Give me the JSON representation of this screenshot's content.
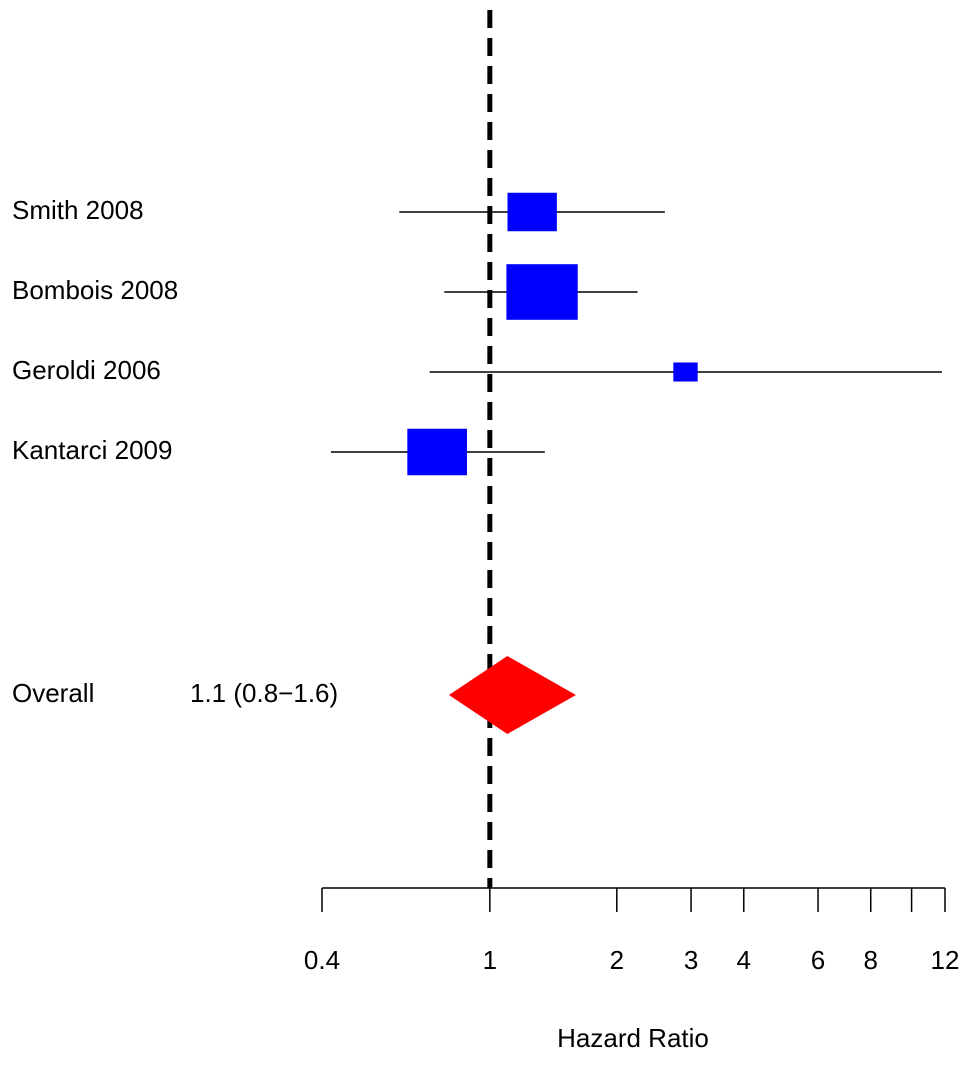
{
  "chart_data": {
    "type": "forest",
    "xlabel": "Hazard Ratio",
    "xscale": "log",
    "xlim": [
      0.4,
      12
    ],
    "xticks": [
      0.4,
      1,
      2,
      3,
      4,
      6,
      8,
      12
    ],
    "xminorticks": [
      10
    ],
    "reference_line": 1,
    "categories": [
      "Smith 2008",
      "Bombois 2008",
      "Geroldi 2006",
      "Kantarci 2009"
    ],
    "values": [
      1.26,
      1.33,
      2.91,
      0.75
    ],
    "ci_lower": [
      0.61,
      0.78,
      0.72,
      0.42
    ],
    "ci_upper": [
      2.6,
      2.24,
      11.8,
      1.35
    ],
    "weights": [
      20.9,
      43.6,
      5.1,
      30.5
    ],
    "color": "#0000ff",
    "overall": {
      "name": "Overall",
      "label": "1.1 (0.8−1.6)",
      "value": 1.1,
      "lower": 0.8,
      "upper": 1.6,
      "color": "#ff0000"
    }
  }
}
